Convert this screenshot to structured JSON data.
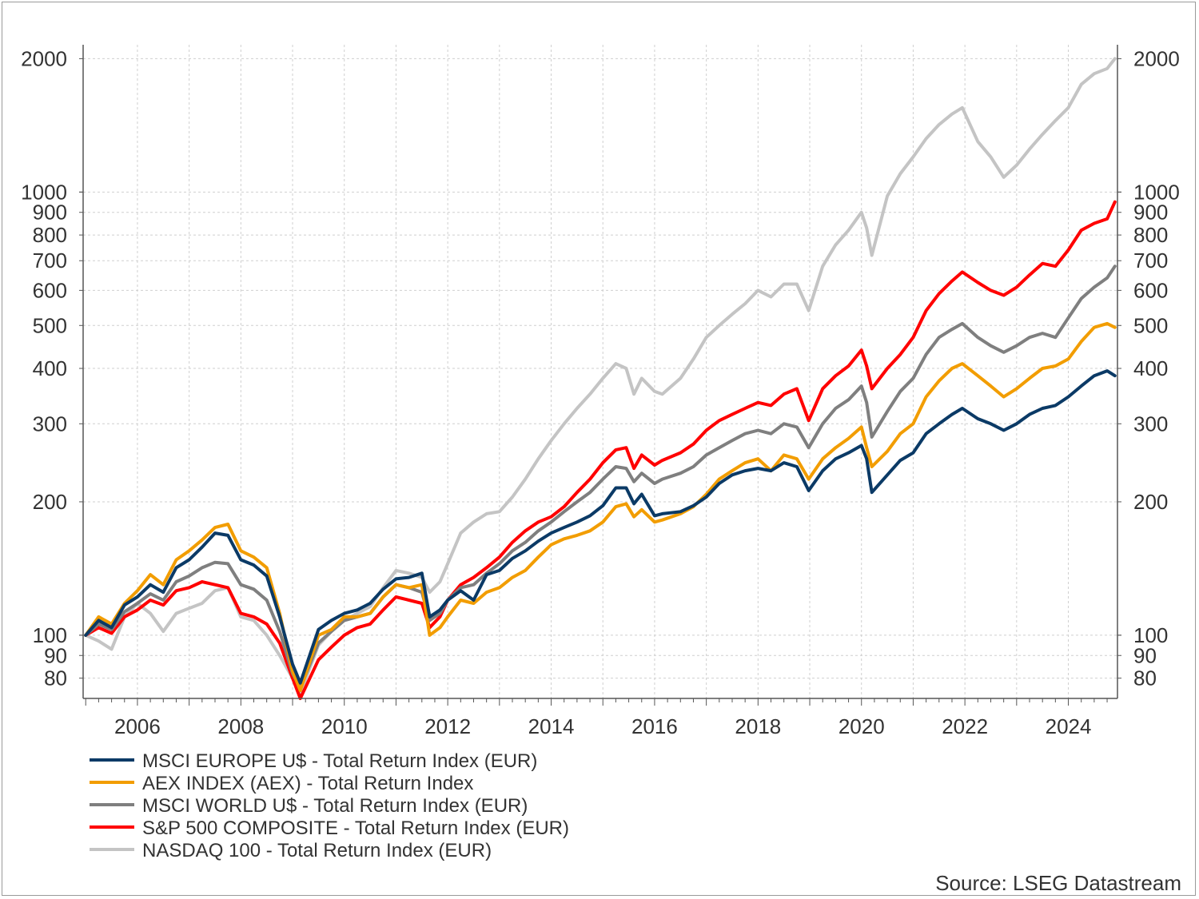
{
  "chart_data": {
    "type": "line",
    "y_scale": "log",
    "ylim": [
      72,
      2150
    ],
    "xlim": [
      2004.95,
      2024.95
    ],
    "y_ticks": [
      80,
      90,
      100,
      200,
      300,
      400,
      500,
      600,
      700,
      800,
      900,
      1000,
      2000
    ],
    "y_tick_labels": [
      "80",
      "90",
      "100",
      "200",
      "300",
      "400",
      "500",
      "600",
      "700",
      "800",
      "900",
      "1000",
      "2000"
    ],
    "x_ticks": [
      2006,
      2008,
      2010,
      2012,
      2014,
      2016,
      2018,
      2020,
      2022,
      2024
    ],
    "x_tick_labels": [
      "2006",
      "2008",
      "2010",
      "2012",
      "2014",
      "2016",
      "2018",
      "2020",
      "2022",
      "2024"
    ],
    "grid": true,
    "legend_position": "bottom-left",
    "source": "Source: LSEG Datastream",
    "series": [
      {
        "name": "MSCI EUROPE U$ - Total Return Index (EUR)",
        "color": "#0b3a66",
        "x": [
          2005.0,
          2005.25,
          2005.5,
          2005.75,
          2006.0,
          2006.25,
          2006.5,
          2006.75,
          2007.0,
          2007.25,
          2007.5,
          2007.75,
          2008.0,
          2008.25,
          2008.5,
          2008.75,
          2009.0,
          2009.15,
          2009.5,
          2009.75,
          2010.0,
          2010.25,
          2010.5,
          2010.75,
          2011.0,
          2011.25,
          2011.5,
          2011.65,
          2011.85,
          2012.0,
          2012.25,
          2012.5,
          2012.75,
          2013.0,
          2013.25,
          2013.5,
          2013.75,
          2014.0,
          2014.25,
          2014.5,
          2014.75,
          2015.0,
          2015.25,
          2015.45,
          2015.6,
          2015.75,
          2016.0,
          2016.15,
          2016.5,
          2016.75,
          2017.0,
          2017.25,
          2017.5,
          2017.75,
          2018.0,
          2018.25,
          2018.5,
          2018.75,
          2018.98,
          2019.25,
          2019.5,
          2019.75,
          2020.0,
          2020.1,
          2020.2,
          2020.5,
          2020.75,
          2021.0,
          2021.25,
          2021.5,
          2021.75,
          2021.95,
          2022.25,
          2022.5,
          2022.75,
          2023.0,
          2023.25,
          2023.5,
          2023.75,
          2024.0,
          2024.25,
          2024.5,
          2024.75,
          2024.9
        ],
        "values": [
          100,
          108,
          104,
          117,
          122,
          130,
          125,
          142,
          148,
          158,
          170,
          168,
          148,
          144,
          136,
          110,
          86,
          78,
          103,
          108,
          112,
          114,
          118,
          127,
          134,
          135,
          138,
          110,
          114,
          120,
          126,
          120,
          137,
          140,
          149,
          155,
          163,
          170,
          175,
          180,
          186,
          196,
          215,
          215,
          198,
          208,
          186,
          188,
          190,
          196,
          205,
          220,
          230,
          235,
          238,
          235,
          245,
          240,
          212,
          235,
          250,
          258,
          268,
          250,
          210,
          230,
          248,
          258,
          285,
          300,
          315,
          325,
          308,
          300,
          290,
          300,
          315,
          325,
          330,
          345,
          365,
          385,
          395,
          385
        ]
      },
      {
        "name": "AEX INDEX (AEX) - Total Return Index",
        "color": "#f29d00",
        "x": [
          2005.0,
          2005.25,
          2005.5,
          2005.75,
          2006.0,
          2006.25,
          2006.5,
          2006.75,
          2007.0,
          2007.25,
          2007.5,
          2007.75,
          2008.0,
          2008.25,
          2008.5,
          2008.75,
          2009.0,
          2009.15,
          2009.5,
          2009.75,
          2010.0,
          2010.25,
          2010.5,
          2010.75,
          2011.0,
          2011.25,
          2011.5,
          2011.65,
          2011.85,
          2012.0,
          2012.25,
          2012.5,
          2012.75,
          2013.0,
          2013.25,
          2013.5,
          2013.75,
          2014.0,
          2014.25,
          2014.5,
          2014.75,
          2015.0,
          2015.25,
          2015.45,
          2015.6,
          2015.75,
          2016.0,
          2016.15,
          2016.5,
          2016.75,
          2017.0,
          2017.25,
          2017.5,
          2017.75,
          2018.0,
          2018.25,
          2018.5,
          2018.75,
          2018.98,
          2019.25,
          2019.5,
          2019.75,
          2020.0,
          2020.1,
          2020.2,
          2020.5,
          2020.75,
          2021.0,
          2021.25,
          2021.5,
          2021.75,
          2021.95,
          2022.25,
          2022.5,
          2022.75,
          2023.0,
          2023.25,
          2023.5,
          2023.75,
          2024.0,
          2024.25,
          2024.5,
          2024.75,
          2024.9
        ],
        "values": [
          100,
          110,
          106,
          118,
          126,
          137,
          130,
          148,
          155,
          164,
          175,
          178,
          155,
          150,
          142,
          112,
          83,
          75,
          100,
          103,
          110,
          110,
          112,
          122,
          130,
          128,
          130,
          100,
          104,
          110,
          120,
          118,
          125,
          128,
          135,
          140,
          150,
          160,
          165,
          168,
          172,
          180,
          195,
          198,
          185,
          192,
          180,
          182,
          188,
          195,
          208,
          225,
          235,
          245,
          250,
          235,
          255,
          250,
          225,
          250,
          265,
          278,
          295,
          265,
          240,
          260,
          285,
          300,
          345,
          375,
          400,
          410,
          385,
          365,
          345,
          360,
          380,
          400,
          405,
          420,
          460,
          495,
          505,
          495
        ]
      },
      {
        "name": "MSCI WORLD U$ - Total Return Index (EUR)",
        "color": "#7f7f7f",
        "x": [
          2005.0,
          2005.25,
          2005.5,
          2005.75,
          2006.0,
          2006.25,
          2006.5,
          2006.75,
          2007.0,
          2007.25,
          2007.5,
          2007.75,
          2008.0,
          2008.25,
          2008.5,
          2008.75,
          2009.0,
          2009.15,
          2009.5,
          2009.75,
          2010.0,
          2010.25,
          2010.5,
          2010.75,
          2011.0,
          2011.25,
          2011.5,
          2011.65,
          2011.85,
          2012.0,
          2012.25,
          2012.5,
          2012.75,
          2013.0,
          2013.25,
          2013.5,
          2013.75,
          2014.0,
          2014.25,
          2014.5,
          2014.75,
          2015.0,
          2015.25,
          2015.45,
          2015.6,
          2015.75,
          2016.0,
          2016.15,
          2016.5,
          2016.75,
          2017.0,
          2017.25,
          2017.5,
          2017.75,
          2018.0,
          2018.25,
          2018.5,
          2018.75,
          2018.98,
          2019.25,
          2019.5,
          2019.75,
          2020.0,
          2020.1,
          2020.2,
          2020.5,
          2020.75,
          2021.0,
          2021.25,
          2021.5,
          2021.75,
          2021.95,
          2022.25,
          2022.5,
          2022.75,
          2023.0,
          2023.25,
          2023.5,
          2023.75,
          2024.0,
          2024.25,
          2024.5,
          2024.75,
          2024.9
        ],
        "values": [
          100,
          106,
          103,
          113,
          118,
          124,
          120,
          132,
          136,
          142,
          146,
          145,
          130,
          127,
          120,
          102,
          82,
          76,
          96,
          102,
          108,
          110,
          112,
          122,
          130,
          128,
          125,
          108,
          112,
          120,
          128,
          130,
          138,
          145,
          155,
          162,
          172,
          180,
          190,
          200,
          210,
          225,
          240,
          238,
          222,
          232,
          220,
          225,
          232,
          240,
          255,
          265,
          275,
          285,
          290,
          285,
          300,
          295,
          265,
          300,
          325,
          340,
          365,
          335,
          280,
          320,
          355,
          380,
          430,
          470,
          490,
          505,
          470,
          450,
          435,
          450,
          470,
          480,
          470,
          520,
          575,
          610,
          640,
          680
        ]
      },
      {
        "name": "S&P 500 COMPOSITE - Total Return Index (EUR)",
        "color": "#ff0000",
        "x": [
          2005.0,
          2005.25,
          2005.5,
          2005.75,
          2006.0,
          2006.25,
          2006.5,
          2006.75,
          2007.0,
          2007.25,
          2007.5,
          2007.75,
          2008.0,
          2008.25,
          2008.5,
          2008.75,
          2009.0,
          2009.15,
          2009.5,
          2009.75,
          2010.0,
          2010.25,
          2010.5,
          2010.75,
          2011.0,
          2011.25,
          2011.5,
          2011.65,
          2011.85,
          2012.0,
          2012.25,
          2012.5,
          2012.75,
          2013.0,
          2013.25,
          2013.5,
          2013.75,
          2014.0,
          2014.25,
          2014.5,
          2014.75,
          2015.0,
          2015.25,
          2015.45,
          2015.6,
          2015.75,
          2016.0,
          2016.15,
          2016.5,
          2016.75,
          2017.0,
          2017.25,
          2017.5,
          2017.75,
          2018.0,
          2018.25,
          2018.5,
          2018.75,
          2018.98,
          2019.25,
          2019.5,
          2019.75,
          2020.0,
          2020.1,
          2020.2,
          2020.5,
          2020.75,
          2021.0,
          2021.25,
          2021.5,
          2021.75,
          2021.95,
          2022.25,
          2022.5,
          2022.75,
          2023.0,
          2023.25,
          2023.5,
          2023.75,
          2024.0,
          2024.25,
          2024.5,
          2024.75,
          2024.9
        ],
        "values": [
          100,
          104,
          101,
          110,
          114,
          120,
          117,
          126,
          128,
          132,
          130,
          128,
          112,
          110,
          106,
          96,
          80,
          72,
          88,
          94,
          100,
          104,
          106,
          114,
          122,
          120,
          118,
          104,
          110,
          120,
          130,
          135,
          142,
          150,
          162,
          172,
          180,
          185,
          195,
          210,
          225,
          245,
          262,
          265,
          238,
          255,
          242,
          248,
          258,
          270,
          290,
          305,
          315,
          325,
          335,
          330,
          350,
          360,
          305,
          360,
          385,
          405,
          440,
          405,
          360,
          400,
          430,
          470,
          540,
          590,
          630,
          660,
          625,
          600,
          585,
          610,
          650,
          690,
          680,
          740,
          820,
          850,
          870,
          950
        ]
      },
      {
        "name": "NASDAQ 100 - Total Return Index (EUR)",
        "color": "#c4c4c4",
        "x": [
          2005.0,
          2005.25,
          2005.5,
          2005.75,
          2006.0,
          2006.25,
          2006.5,
          2006.75,
          2007.0,
          2007.25,
          2007.5,
          2007.75,
          2008.0,
          2008.25,
          2008.5,
          2008.75,
          2009.0,
          2009.15,
          2009.5,
          2009.75,
          2010.0,
          2010.25,
          2010.5,
          2010.75,
          2011.0,
          2011.25,
          2011.5,
          2011.65,
          2011.85,
          2012.0,
          2012.25,
          2012.5,
          2012.75,
          2013.0,
          2013.25,
          2013.5,
          2013.75,
          2014.0,
          2014.25,
          2014.5,
          2014.75,
          2015.0,
          2015.25,
          2015.45,
          2015.6,
          2015.75,
          2016.0,
          2016.15,
          2016.5,
          2016.75,
          2017.0,
          2017.25,
          2017.5,
          2017.75,
          2018.0,
          2018.25,
          2018.5,
          2018.75,
          2018.98,
          2019.25,
          2019.5,
          2019.75,
          2020.0,
          2020.1,
          2020.2,
          2020.5,
          2020.75,
          2021.0,
          2021.25,
          2021.5,
          2021.75,
          2021.95,
          2022.25,
          2022.5,
          2022.75,
          2023.0,
          2023.25,
          2023.5,
          2023.75,
          2024.0,
          2024.25,
          2024.5,
          2024.75,
          2024.9
        ],
        "values": [
          100,
          97,
          93,
          110,
          118,
          112,
          102,
          112,
          115,
          118,
          126,
          128,
          110,
          108,
          100,
          90,
          80,
          74,
          95,
          102,
          108,
          112,
          116,
          128,
          140,
          138,
          135,
          125,
          132,
          145,
          170,
          180,
          188,
          190,
          205,
          225,
          250,
          275,
          300,
          325,
          350,
          380,
          410,
          400,
          350,
          380,
          355,
          350,
          380,
          420,
          470,
          500,
          530,
          560,
          600,
          580,
          620,
          620,
          540,
          680,
          760,
          820,
          900,
          830,
          720,
          980,
          1100,
          1200,
          1320,
          1420,
          1500,
          1550,
          1300,
          1200,
          1080,
          1150,
          1250,
          1350,
          1450,
          1550,
          1750,
          1850,
          1900,
          2000
        ]
      }
    ]
  }
}
